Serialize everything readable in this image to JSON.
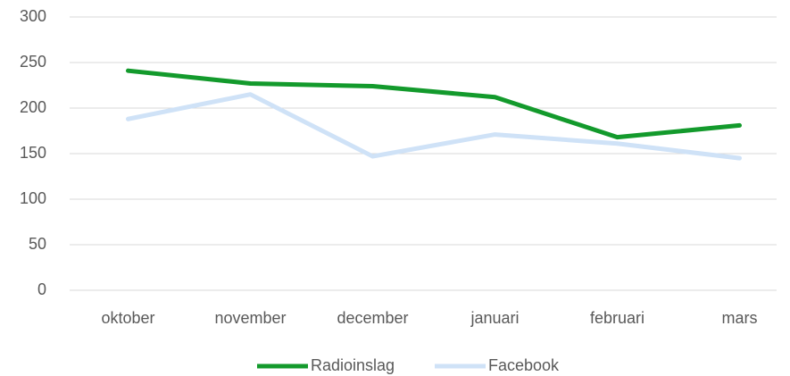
{
  "chart_data": {
    "type": "line",
    "categories": [
      "oktober",
      "november",
      "december",
      "januari",
      "februari",
      "mars"
    ],
    "series": [
      {
        "name": "Radioinslag",
        "color": "#139a2c",
        "values": [
          241,
          227,
          224,
          212,
          168,
          181
        ]
      },
      {
        "name": "Facebook",
        "color": "#cfe2f7",
        "values": [
          188,
          215,
          147,
          171,
          161,
          145
        ]
      }
    ],
    "ylim": [
      0,
      300
    ],
    "yticks": [
      0,
      50,
      100,
      150,
      200,
      250,
      300
    ],
    "grid": true,
    "legend": "bottom"
  }
}
